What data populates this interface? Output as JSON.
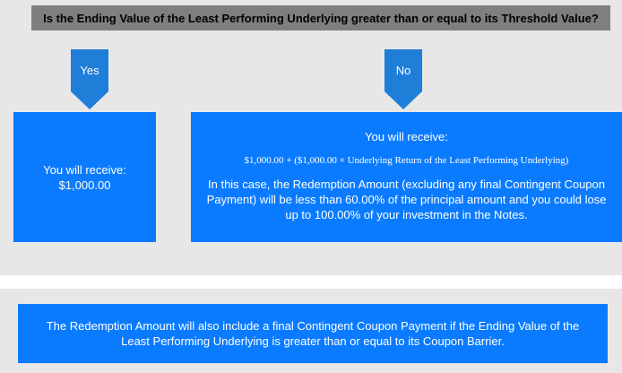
{
  "question": "Is the Ending Value of the Least Performing Underlying greater than or equal to its Threshold Value?",
  "branches": {
    "yes": {
      "label": "Yes",
      "receive": "You will receive:",
      "amount": "$1,000.00"
    },
    "no": {
      "label": "No",
      "receive": "You will receive:",
      "formula": "$1,000.00 + ($1,000.00 × Underlying Return of the Least Performing Underlying)",
      "explanation": "In this case, the Redemption Amount (excluding any final Contingent Coupon Payment) will be less than 60.00% of the principal amount and you could lose up to 100.00% of your investment in the Notes."
    }
  },
  "note": "The Redemption Amount will also include a final Contingent Coupon Payment if the Ending Value of the Least Performing Underlying is greater than or equal to its Coupon Barrier.",
  "colors": {
    "background_panel": "#e7e7e7",
    "question_bar": "#7f7f7f",
    "arrow": "#1f7fd8",
    "box": "#0a7bff",
    "box_text": "#ffffff"
  }
}
